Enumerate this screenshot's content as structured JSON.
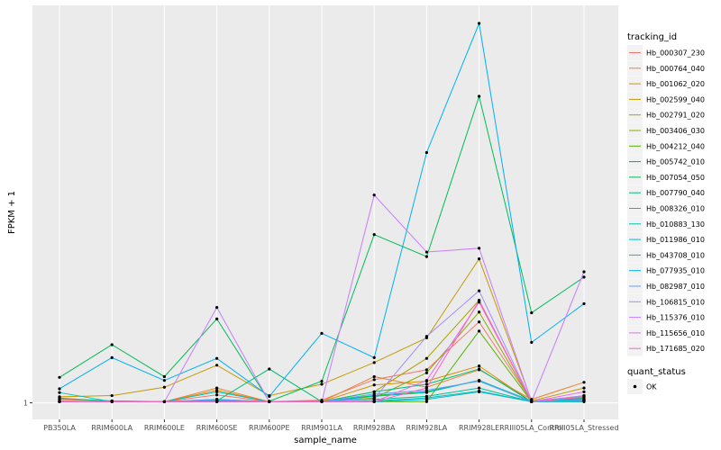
{
  "chart_data": {
    "type": "line",
    "title": "",
    "xlabel": "sample_name",
    "ylabel": "FPKM + 1",
    "categories": [
      "PB350LA",
      "RRIM600LA",
      "RRIM600LE",
      "RRIM600SE",
      "RRIM600PE",
      "RRIM901LA",
      "RRIM928BA",
      "RRIM928LA",
      "RRIM928LE",
      "RRIII05LA_Control",
      "RRIII05LA_Stressed"
    ],
    "y_ticks": [
      {
        "value": 1,
        "label": "1"
      }
    ],
    "ylim": [
      0,
      1000
    ],
    "grid": true,
    "legend_position": "right",
    "legend_title": "tracking_id",
    "legend2_title": "quant_status",
    "legend2_items": [
      {
        "label": "OK",
        "shape": "point"
      }
    ],
    "series": [
      {
        "name": "Hb_000307_230",
        "color": "#F8766D",
        "values": [
          14,
          4,
          4,
          22,
          4,
          8,
          62,
          88,
          214,
          6,
          18
        ]
      },
      {
        "name": "Hb_000764_040",
        "color": "#EB8335",
        "values": [
          10,
          6,
          4,
          40,
          4,
          4,
          70,
          42,
          88,
          10,
          55
        ]
      },
      {
        "name": "Hb_001062_020",
        "color": "#DA8F00",
        "values": [
          6,
          4,
          4,
          34,
          4,
          4,
          48,
          58,
          98,
          4,
          12
        ]
      },
      {
        "name": "Hb_002599_040",
        "color": "#C49A00",
        "values": [
          17,
          20,
          42,
          100,
          20,
          50,
          107,
          172,
          380,
          6,
          40
        ]
      },
      {
        "name": "Hb_002791_020",
        "color": "#A9A400",
        "values": [
          4,
          4,
          4,
          10,
          4,
          4,
          30,
          118,
          271,
          4,
          10
        ]
      },
      {
        "name": "Hb_003406_030",
        "color": "#86AC00",
        "values": [
          4,
          4,
          4,
          4,
          4,
          4,
          14,
          80,
          240,
          4,
          20
        ]
      },
      {
        "name": "Hb_004212_040",
        "color": "#53B400",
        "values": [
          4,
          4,
          4,
          4,
          4,
          4,
          4,
          4,
          190,
          4,
          4
        ]
      },
      {
        "name": "Hb_005742_010",
        "color": "#00B823",
        "values": [
          4,
          4,
          4,
          4,
          4,
          4,
          20,
          30,
          60,
          4,
          6
        ]
      },
      {
        "name": "Hb_007054_050",
        "color": "#00BC56",
        "values": [
          68,
          154,
          70,
          222,
          5,
          58,
          444,
          386,
          808,
          238,
          332
        ]
      },
      {
        "name": "Hb_007790_040",
        "color": "#00BE77",
        "values": [
          12,
          6,
          4,
          6,
          90,
          4,
          30,
          50,
          90,
          4,
          14
        ]
      },
      {
        "name": "Hb_008326_010",
        "color": "#00C094",
        "values": [
          4,
          4,
          4,
          6,
          4,
          6,
          10,
          18,
          40,
          4,
          8
        ]
      },
      {
        "name": "Hb_010883_130",
        "color": "#00BFAF",
        "values": [
          4,
          4,
          4,
          8,
          4,
          4,
          6,
          14,
          32,
          4,
          6
        ]
      },
      {
        "name": "Hb_011986_010",
        "color": "#00BDC8",
        "values": [
          28,
          4,
          4,
          30,
          4,
          4,
          18,
          28,
          60,
          6,
          10
        ]
      },
      {
        "name": "Hb_043708_010",
        "color": "#00B8DE",
        "values": [
          4,
          4,
          4,
          4,
          4,
          4,
          4,
          10,
          30,
          4,
          4
        ]
      },
      {
        "name": "Hb_077935_010",
        "color": "#00B0F6",
        "values": [
          38,
          120,
          60,
          118,
          18,
          184,
          120,
          660,
          1000,
          160,
          262
        ]
      },
      {
        "name": "Hb_082987_010",
        "color": "#619CFF",
        "values": [
          4,
          4,
          4,
          10,
          4,
          4,
          24,
          34,
          58,
          4,
          8
        ]
      },
      {
        "name": "Hb_106815_010",
        "color": "#A58AFF",
        "values": [
          4,
          4,
          4,
          4,
          4,
          4,
          12,
          176,
          296,
          4,
          20
        ]
      },
      {
        "name": "Hb_115376_010",
        "color": "#C77CFF",
        "values": [
          4,
          4,
          4,
          252,
          4,
          4,
          548,
          398,
          408,
          4,
          346
        ]
      },
      {
        "name": "Hb_115656_010",
        "color": "#E76BF3",
        "values": [
          4,
          4,
          4,
          4,
          4,
          4,
          4,
          60,
          266,
          4,
          30
        ]
      },
      {
        "name": "Hb_171685_020",
        "color": "#FF62BC",
        "values": [
          4,
          4,
          4,
          4,
          4,
          4,
          4,
          40,
          270,
          4,
          16
        ]
      }
    ]
  }
}
